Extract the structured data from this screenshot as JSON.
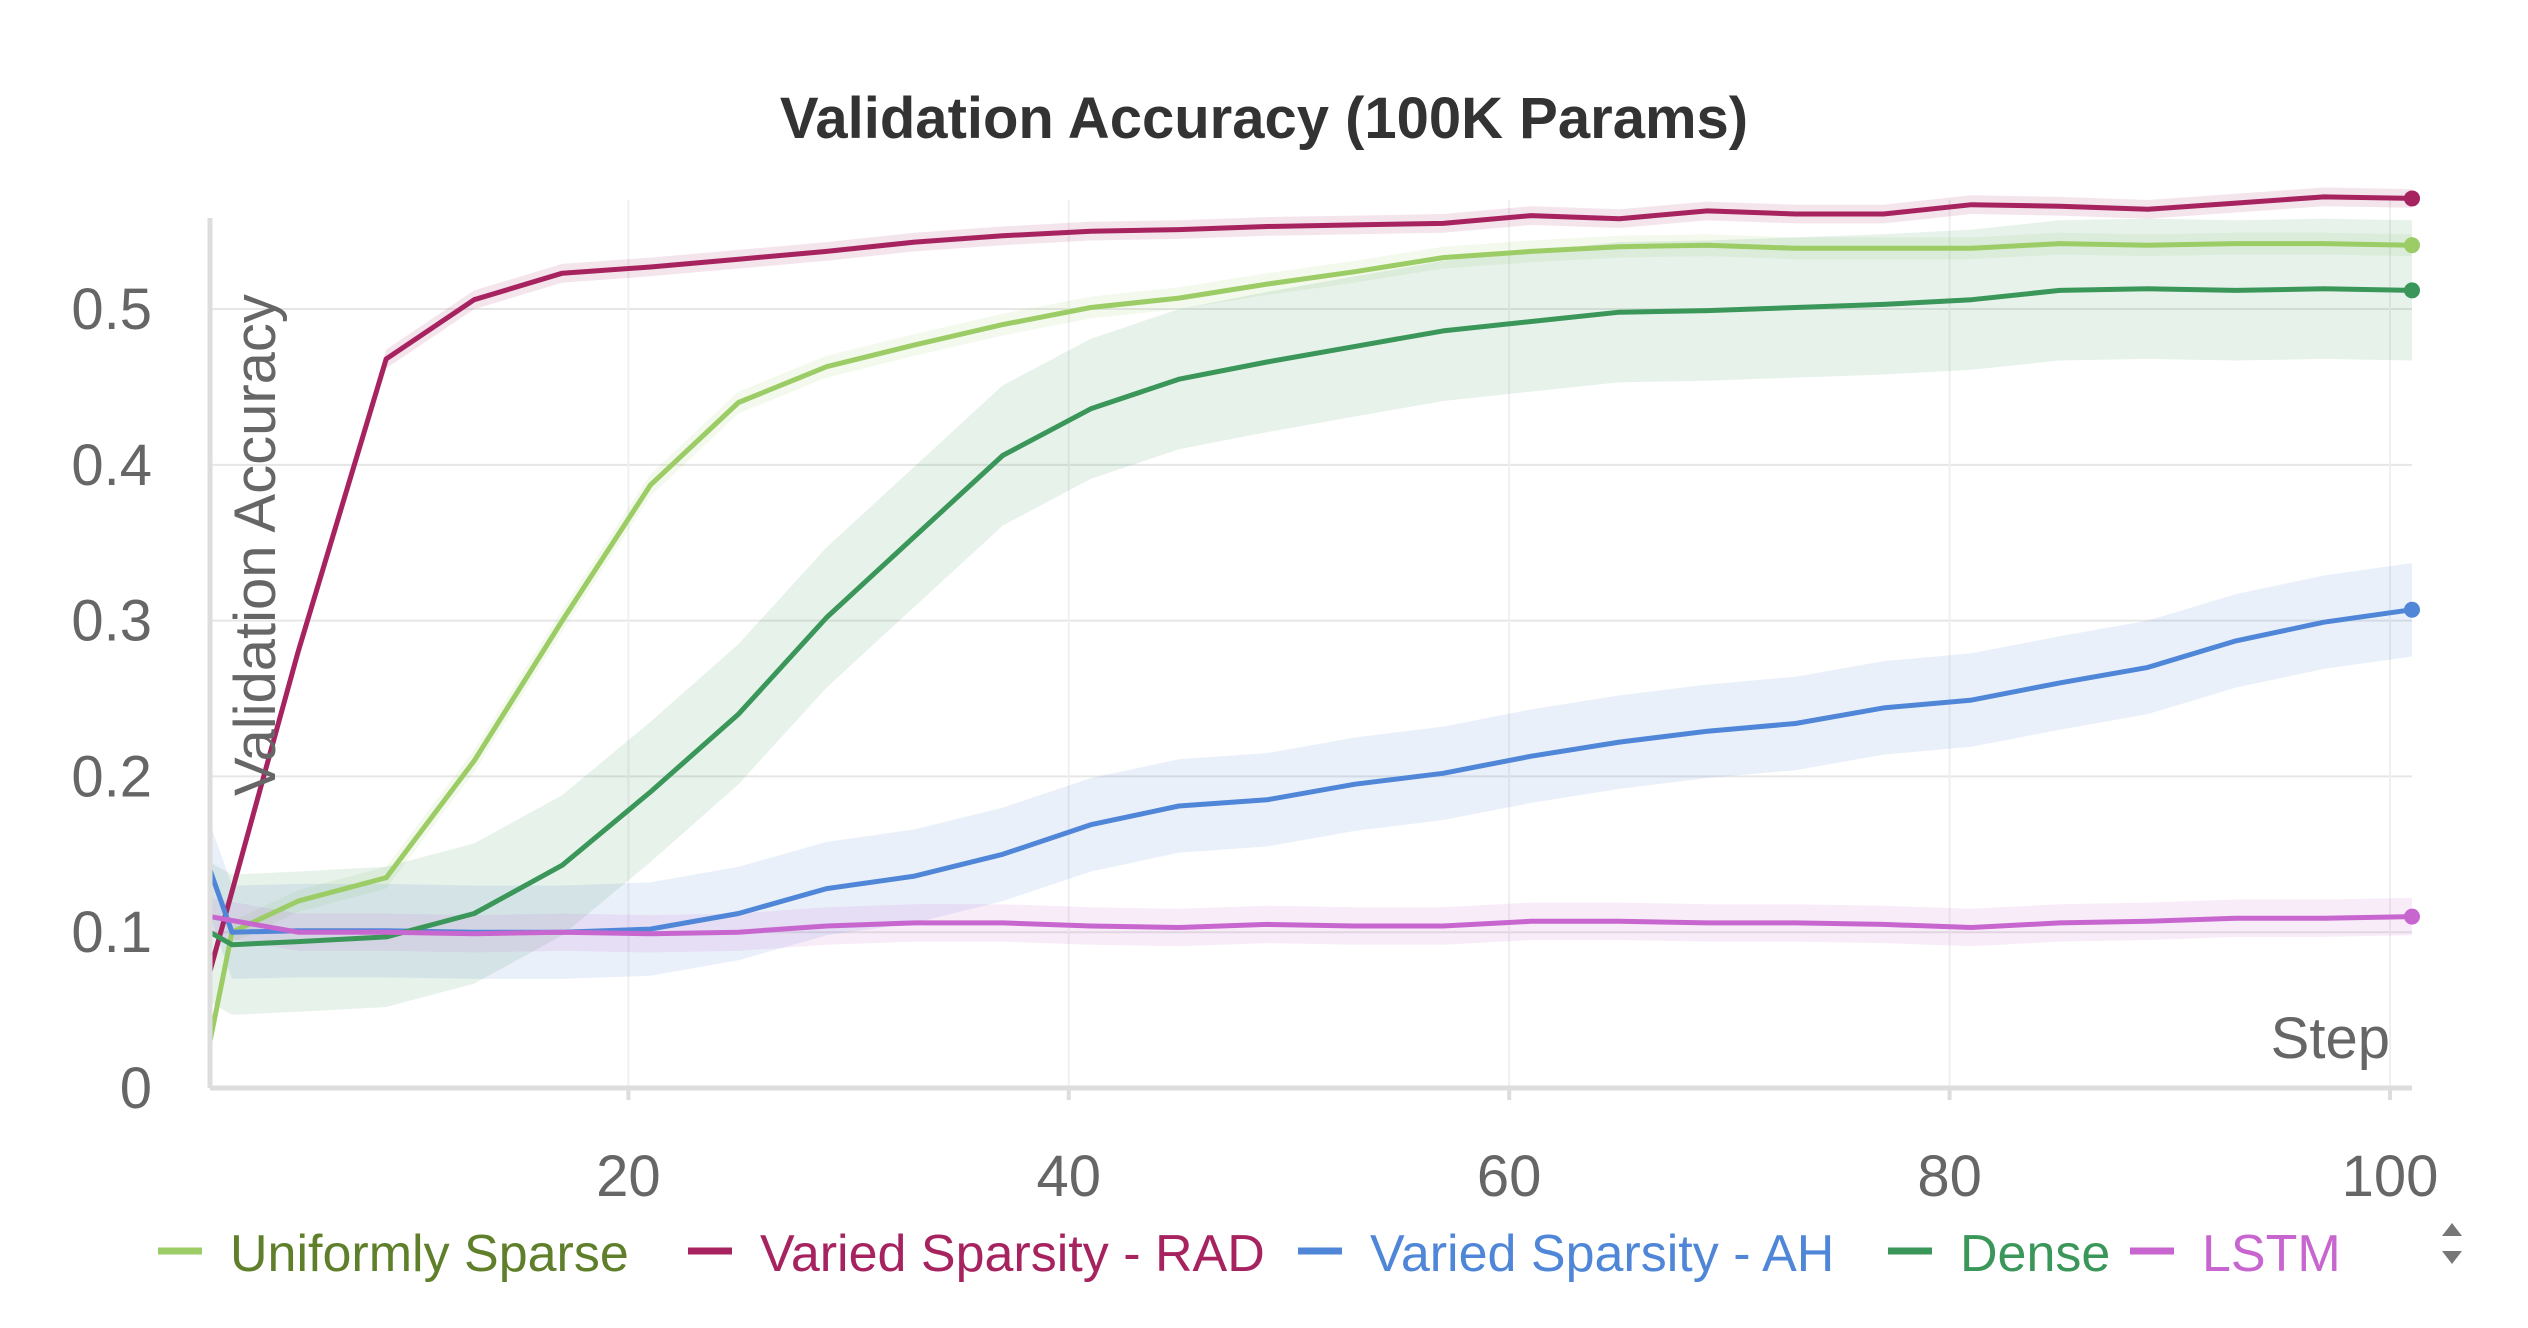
{
  "chart_data": {
    "type": "line",
    "title": "Validation Accuracy (100K Params)",
    "xlabel": "Step",
    "ylabel": "Validation Accuracy",
    "xlim": [
      1,
      101
    ],
    "ylim": [
      0,
      0.57
    ],
    "xticks": [
      20,
      40,
      60,
      80,
      100
    ],
    "yticks": [
      0,
      0.1,
      0.2,
      0.3,
      0.4,
      0.5
    ],
    "grid": true,
    "legend_position": "bottom",
    "series": [
      {
        "name": "Uniformly Sparse",
        "color": "#9ccc65",
        "legend_text_color": "#5f7f2a",
        "x": [
          1,
          2,
          5,
          9,
          13,
          17,
          21,
          25,
          29,
          33,
          37,
          41,
          45,
          49,
          53,
          57,
          61,
          65,
          69,
          73,
          77,
          81,
          85,
          89,
          93,
          97,
          101
        ],
        "y": [
          0.03,
          0.1,
          0.12,
          0.135,
          0.21,
          0.3,
          0.387,
          0.44,
          0.463,
          0.477,
          0.49,
          0.501,
          0.507,
          0.516,
          0.524,
          0.533,
          0.537,
          0.54,
          0.541,
          0.539,
          0.539,
          0.539,
          0.542,
          0.541,
          0.542,
          0.542,
          0.541
        ],
        "band": 0.007
      },
      {
        "name": "Varied Sparsity - RAD",
        "color": "#a6235f",
        "legend_text_color": "#a6235f",
        "x": [
          1,
          5,
          9,
          13,
          17,
          21,
          25,
          29,
          33,
          37,
          41,
          45,
          49,
          53,
          57,
          61,
          65,
          69,
          73,
          77,
          81,
          85,
          89,
          93,
          97,
          101
        ],
        "y": [
          0.075,
          0.28,
          0.468,
          0.506,
          0.523,
          0.527,
          0.532,
          0.537,
          0.543,
          0.547,
          0.55,
          0.551,
          0.553,
          0.554,
          0.555,
          0.56,
          0.558,
          0.563,
          0.561,
          0.561,
          0.567,
          0.566,
          0.564,
          0.568,
          0.572,
          0.571
        ],
        "band": 0.006
      },
      {
        "name": "Varied Sparsity - AH",
        "color": "#4f86d8",
        "legend_text_color": "#4f86d8",
        "x": [
          1,
          2,
          5,
          9,
          13,
          17,
          21,
          25,
          29,
          33,
          37,
          41,
          45,
          49,
          53,
          57,
          61,
          65,
          69,
          73,
          77,
          81,
          85,
          89,
          93,
          97,
          101
        ],
        "y": [
          0.14,
          0.1,
          0.101,
          0.101,
          0.1,
          0.1,
          0.102,
          0.112,
          0.128,
          0.136,
          0.15,
          0.169,
          0.181,
          0.185,
          0.195,
          0.202,
          0.213,
          0.222,
          0.229,
          0.234,
          0.244,
          0.249,
          0.26,
          0.27,
          0.287,
          0.299,
          0.307
        ],
        "band": 0.03
      },
      {
        "name": "Dense",
        "color": "#3a9659",
        "legend_text_color": "#3a9659",
        "x": [
          1,
          2,
          5,
          9,
          13,
          17,
          21,
          25,
          29,
          33,
          37,
          41,
          45,
          49,
          53,
          57,
          61,
          65,
          69,
          73,
          77,
          81,
          85,
          89,
          93,
          97,
          101
        ],
        "y": [
          0.1,
          0.092,
          0.094,
          0.097,
          0.112,
          0.143,
          0.19,
          0.24,
          0.302,
          0.354,
          0.406,
          0.436,
          0.455,
          0.466,
          0.476,
          0.486,
          0.492,
          0.498,
          0.499,
          0.501,
          0.503,
          0.506,
          0.512,
          0.513,
          0.512,
          0.513,
          0.512
        ],
        "band": 0.045
      },
      {
        "name": "LSTM",
        "color": "#c866cf",
        "legend_text_color": "#c866cf",
        "x": [
          1,
          5,
          9,
          13,
          17,
          21,
          25,
          29,
          33,
          37,
          41,
          45,
          49,
          53,
          57,
          61,
          65,
          69,
          73,
          77,
          81,
          85,
          89,
          93,
          97,
          101
        ],
        "y": [
          0.11,
          0.1,
          0.1,
          0.099,
          0.1,
          0.099,
          0.1,
          0.104,
          0.106,
          0.106,
          0.104,
          0.103,
          0.105,
          0.104,
          0.104,
          0.107,
          0.107,
          0.106,
          0.106,
          0.105,
          0.103,
          0.106,
          0.107,
          0.109,
          0.109,
          0.11
        ],
        "band": 0.012
      }
    ]
  }
}
